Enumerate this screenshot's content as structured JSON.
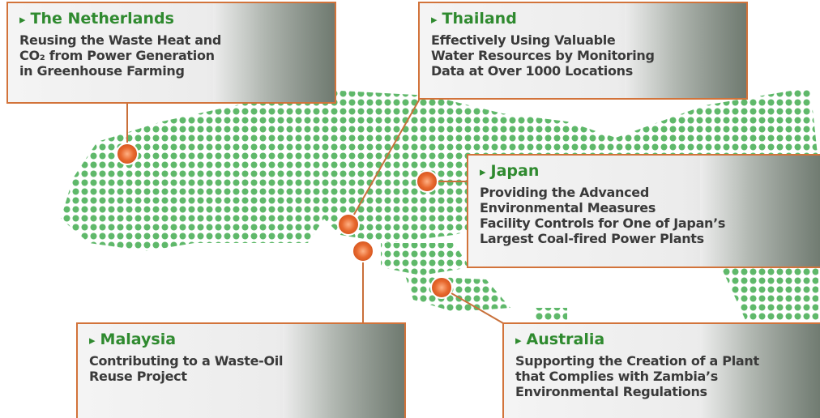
{
  "callouts": [
    {
      "country": "The Netherlands",
      "lines": [
        "Reusing the Waste Heat and",
        "CO₂ from Power Generation",
        "in Greenhouse Farming"
      ]
    },
    {
      "country": "Thailand",
      "lines": [
        "Effectively Using Valuable",
        "Water Resources by Monitoring",
        "Data at Over 1000 Locations"
      ]
    },
    {
      "country": "Japan",
      "lines": [
        "Providing the Advanced",
        "Environmental Measures",
        "Facility Controls for One of Japan’s",
        "Largest Coal-fired Power Plants"
      ]
    },
    {
      "country": "Malaysia",
      "lines": [
        "Contributing to a Waste-Oil",
        "Reuse Project"
      ]
    },
    {
      "country": "Australia",
      "lines": [
        "Supporting the Creation of a Plant",
        "that Complies with Zambia’s",
        "Environmental Regulations"
      ]
    }
  ]
}
